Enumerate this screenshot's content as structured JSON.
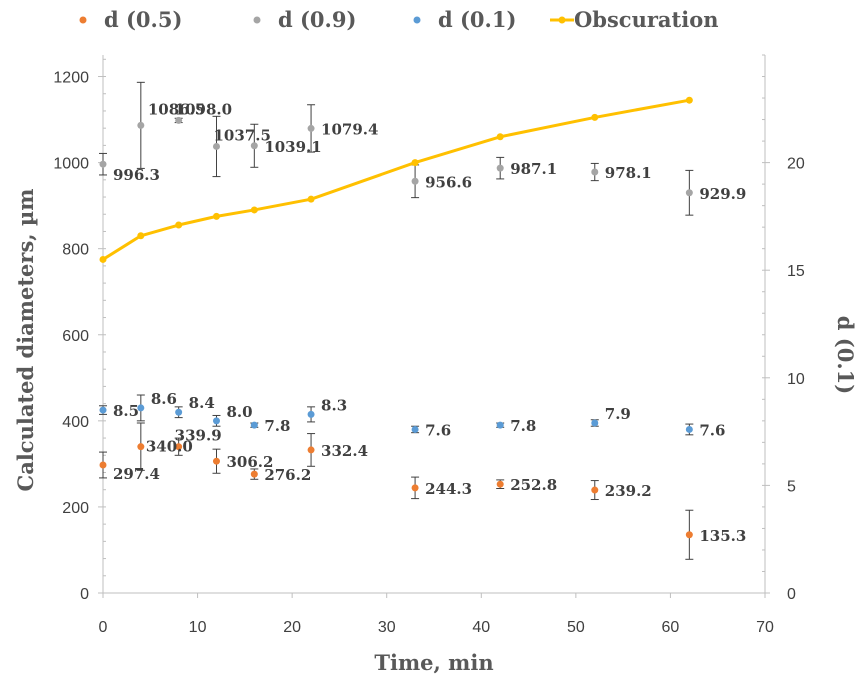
{
  "chart_data": {
    "type": "scatter",
    "xlabel": "Time, min",
    "ylabel": "Calculated diameters, µm",
    "y2label": "d (0.1)",
    "xlim": [
      0,
      70
    ],
    "ylim": [
      0,
      1250
    ],
    "y2lim": [
      0,
      25
    ],
    "x_ticks": [
      "0",
      "10",
      "20",
      "30",
      "40",
      "50",
      "60",
      "70"
    ],
    "y_ticks": [
      "0",
      "200",
      "400",
      "600",
      "800",
      "1000",
      "1200"
    ],
    "y2_ticks": [
      "0",
      "5",
      "10",
      "15",
      "20"
    ],
    "legend_position": "top",
    "grid": false,
    "series": [
      {
        "name": "d (0.5)",
        "axis": "left",
        "style": "markers",
        "color": "#ED7D31",
        "x": [
          0,
          4,
          8,
          12,
          16,
          22,
          33,
          42,
          52,
          62
        ],
        "y": [
          297.4,
          340.0,
          339.9,
          306.2,
          276.2,
          332.4,
          244.3,
          252.8,
          239.2,
          135.3
        ],
        "error": [
          30,
          55,
          20,
          28,
          12,
          38,
          25,
          10,
          22,
          57
        ],
        "labels": [
          "297.4",
          "340.0",
          "339.9",
          "306.2",
          "276.2",
          "332.4",
          "244.3",
          "252.8",
          "239.2",
          "135.3"
        ]
      },
      {
        "name": "d (0.9)",
        "axis": "left",
        "style": "markers",
        "color": "#A5A5A5",
        "x": [
          0,
          4,
          8,
          12,
          16,
          22,
          33,
          42,
          52,
          62
        ],
        "y": [
          996.3,
          1086.5,
          1098.0,
          1037.5,
          1039.1,
          1079.4,
          956.6,
          987.1,
          978.1,
          929.9
        ],
        "error": [
          25,
          100,
          5,
          70,
          50,
          55,
          38,
          25,
          20,
          52
        ],
        "labels": [
          "996.3",
          "1086.5",
          "1098.0",
          "1037.5",
          "1039.1",
          "1079.4",
          "956.6",
          "987.1",
          "978.1",
          "929.9"
        ]
      },
      {
        "name": "d (0.1)",
        "axis": "right",
        "style": "markers",
        "color": "#5B9BD5",
        "x": [
          0,
          4,
          8,
          12,
          16,
          22,
          33,
          42,
          52,
          62
        ],
        "y": [
          8.5,
          8.6,
          8.4,
          8.0,
          7.8,
          8.3,
          7.6,
          7.8,
          7.9,
          7.6
        ],
        "error": [
          0.2,
          0.6,
          0.25,
          0.25,
          0.1,
          0.35,
          0.15,
          0.1,
          0.15,
          0.25
        ],
        "labels": [
          "8.5",
          "8.6",
          "8.4",
          "8.0",
          "7.8",
          "8.3",
          "7.6",
          "7.8",
          "7.9",
          "7.6"
        ]
      },
      {
        "name": "Obscuration",
        "axis": "right",
        "style": "line-markers",
        "color": "#FFC000",
        "x": [
          0,
          4,
          8,
          12,
          16,
          22,
          33,
          42,
          52,
          62
        ],
        "y": [
          15.5,
          16.6,
          17.1,
          17.5,
          17.8,
          18.3,
          20.0,
          21.2,
          22.1,
          22.9
        ]
      }
    ]
  }
}
